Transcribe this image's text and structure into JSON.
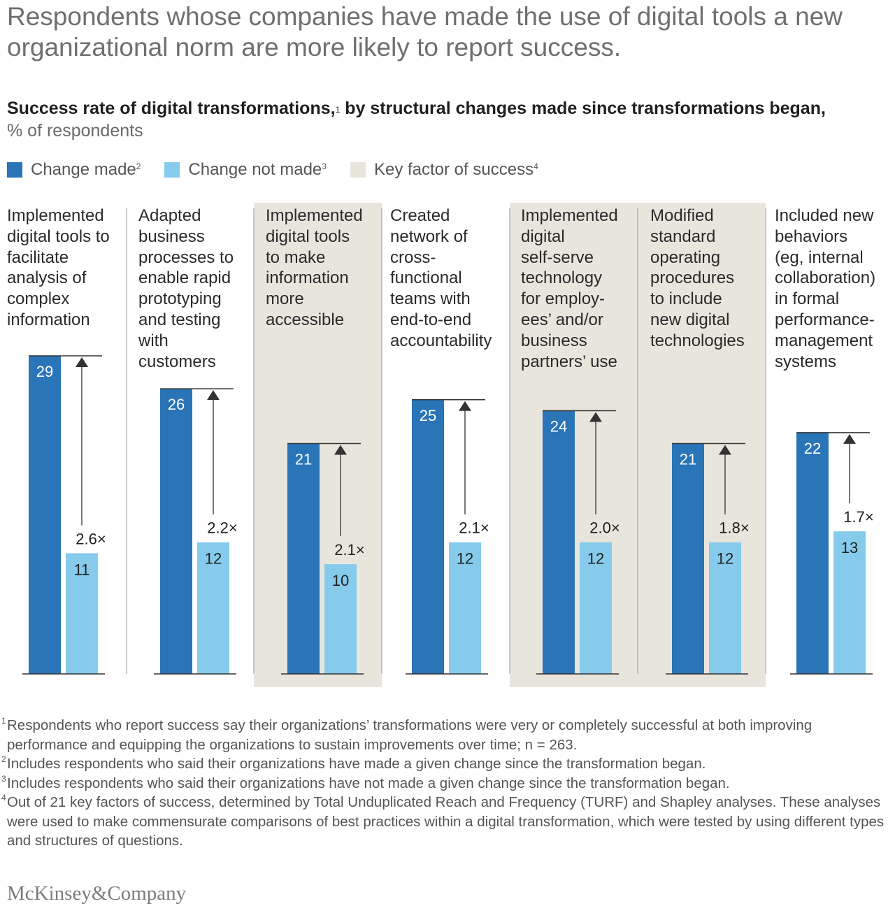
{
  "headline": "Respondents whose companies have made the use of digital tools a new organizational norm are more likely to report success.",
  "subtitle": "Success rate of digital transformations,",
  "subtitle_note": "1",
  "subtitle_rest": " by structural changes made since transformations began,",
  "units": "% of respondents",
  "colors": {
    "made": "#2a74b8",
    "not_made": "#86cbec",
    "key": "#e8e5dd",
    "axis": "#333333"
  },
  "legend": [
    {
      "label": "Change made",
      "note": "2",
      "color": "#2a74b8"
    },
    {
      "label": "Change not made",
      "note": "3",
      "color": "#86cbec"
    },
    {
      "label": "Key factor of success",
      "note": "4",
      "color": "#e8e5dd"
    }
  ],
  "chart_data": {
    "type": "bar",
    "categories": [
      "Implemented digital tools to facilitate analysis of complex information",
      "Adapted business processes to enable rapid prototyping and testing with customers",
      "Implemented digital tools to make information more accessible",
      "Created network of cross-functional teams with end-to-end accountability",
      "Implemented digital self-serve technology for employees' and/or business partners' use",
      "Modified standard operating procedures to include new digital technologies",
      "Included new behaviors (eg, internal collaboration) in formal performance-management systems"
    ],
    "category_lines": [
      [
        "Implemented",
        "digital tools to",
        "facilitate",
        "analysis of",
        "complex",
        "information"
      ],
      [
        "Adapted",
        "business",
        "processes to",
        "enable rapid",
        "prototyping",
        "and testing",
        "with",
        "customers"
      ],
      [
        "Implemented",
        "digital tools",
        "to make",
        "information",
        "more",
        "accessible"
      ],
      [
        "Created",
        "network of",
        "cross-",
        "functional",
        "teams with",
        "end-to-end",
        "accountability"
      ],
      [
        "Implemented",
        "digital",
        "self-serve",
        "technology",
        "for employ-",
        "ees’ and/or",
        "business",
        "partners’ use"
      ],
      [
        "Modified",
        "standard",
        "operating",
        "procedures",
        "to include",
        "new digital",
        "technologies"
      ],
      [
        "Included new",
        "behaviors",
        "(eg, internal",
        "collaboration)",
        "in formal",
        "performance-",
        "management",
        "systems"
      ]
    ],
    "series": [
      {
        "name": "Change made",
        "values": [
          29,
          26,
          21,
          25,
          24,
          21,
          22
        ]
      },
      {
        "name": "Change not made",
        "values": [
          11,
          12,
          10,
          12,
          12,
          12,
          13
        ]
      }
    ],
    "multipliers": [
      "2.6×",
      "2.2×",
      "2.1×",
      "2.1×",
      "2.0×",
      "1.8×",
      "1.7×"
    ],
    "key_factor": [
      false,
      false,
      true,
      false,
      true,
      true,
      false
    ],
    "ylim": [
      0,
      29
    ],
    "grid": false
  },
  "footnotes": [
    {
      "mark": "1",
      "text": "Respondents who report success say their organizations’ transformations were very or completely successful at both improving performance and equipping the organizations to sustain improvements over time; n = 263."
    },
    {
      "mark": "2",
      "text": "Includes respondents who said their organizations have made a given change since the transformation began."
    },
    {
      "mark": "3",
      "text": "Includes respondents who said their organizations have not made a given change since the transformation began."
    },
    {
      "mark": "4",
      "text": "Out of 21 key factors of success, determined by Total Unduplicated Reach and Frequency (TURF) and Shapley analyses. These analyses were used to make commensurate comparisons of best practices within a digital transformation, which were tested by using different types and structures of questions."
    }
  ],
  "brand": "McKinsey&Company"
}
